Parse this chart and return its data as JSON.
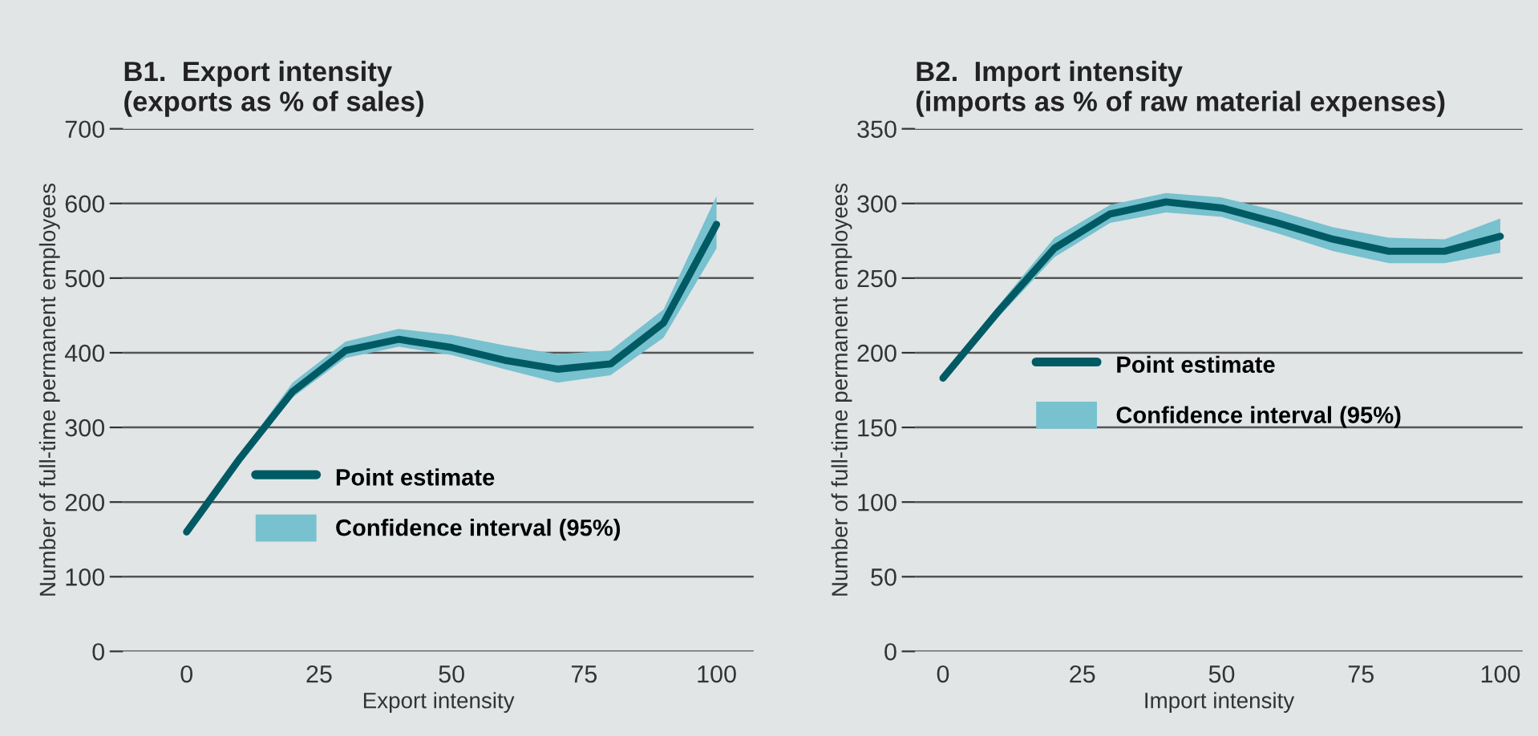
{
  "chart_data": [
    {
      "type": "line",
      "title": "B1.  Export intensity\n(exports as % of sales)",
      "xlabel": "Export intensity",
      "ylabel": "Number of full-time permanent employees",
      "x": [
        0,
        10,
        20,
        30,
        40,
        50,
        60,
        70,
        80,
        90,
        100
      ],
      "series": [
        {
          "name": "Point estimate",
          "type": "line",
          "color": "#005a64",
          "values": [
            160,
            258,
            348,
            403,
            418,
            407,
            390,
            378,
            385,
            440,
            572
          ]
        },
        {
          "name": "Confidence interval (95%)",
          "type": "area",
          "color": "#78c1cf",
          "values": [
            null,
            null,
            null,
            null,
            null,
            null,
            null,
            null,
            null,
            null,
            null
          ],
          "lower": [
            156,
            253,
            340,
            393,
            408,
            397,
            378,
            360,
            370,
            420,
            540
          ],
          "upper": [
            164,
            263,
            360,
            415,
            432,
            424,
            410,
            398,
            403,
            458,
            610
          ]
        }
      ],
      "xlim": [
        -12,
        107
      ],
      "ylim": [
        0,
        700
      ],
      "xticks": [
        0,
        25,
        50,
        75,
        100
      ],
      "yticks": [
        0,
        100,
        200,
        300,
        400,
        500,
        600,
        700
      ],
      "grid": "y",
      "legend": "bottom"
    },
    {
      "type": "line",
      "title": "B2.  Import intensity\n(imports as % of raw material expenses)",
      "xlabel": "Import intensity",
      "ylabel": "Number of full-time permanent employees",
      "x": [
        0,
        10,
        20,
        30,
        40,
        50,
        60,
        70,
        80,
        90,
        100
      ],
      "series": [
        {
          "name": "Point estimate",
          "type": "line",
          "color": "#005a64",
          "values": [
            183,
            228,
            270,
            293,
            301,
            297,
            287,
            276,
            268,
            268,
            278
          ]
        },
        {
          "name": "Confidence interval (95%)",
          "type": "area",
          "color": "#78c1cf",
          "values": [
            null,
            null,
            null,
            null,
            null,
            null,
            null,
            null,
            null,
            null,
            null
          ],
          "lower": [
            180,
            224,
            264,
            287,
            294,
            291,
            280,
            268,
            260,
            260,
            267
          ],
          "upper": [
            186,
            232,
            277,
            299,
            307,
            304,
            295,
            284,
            277,
            276,
            290
          ]
        }
      ],
      "xlim": [
        -5,
        104
      ],
      "ylim": [
        0,
        350
      ],
      "xticks": [
        0,
        25,
        50,
        75,
        100
      ],
      "yticks": [
        0,
        50,
        100,
        150,
        200,
        250,
        300,
        350
      ],
      "grid": "y",
      "legend": "center"
    }
  ]
}
